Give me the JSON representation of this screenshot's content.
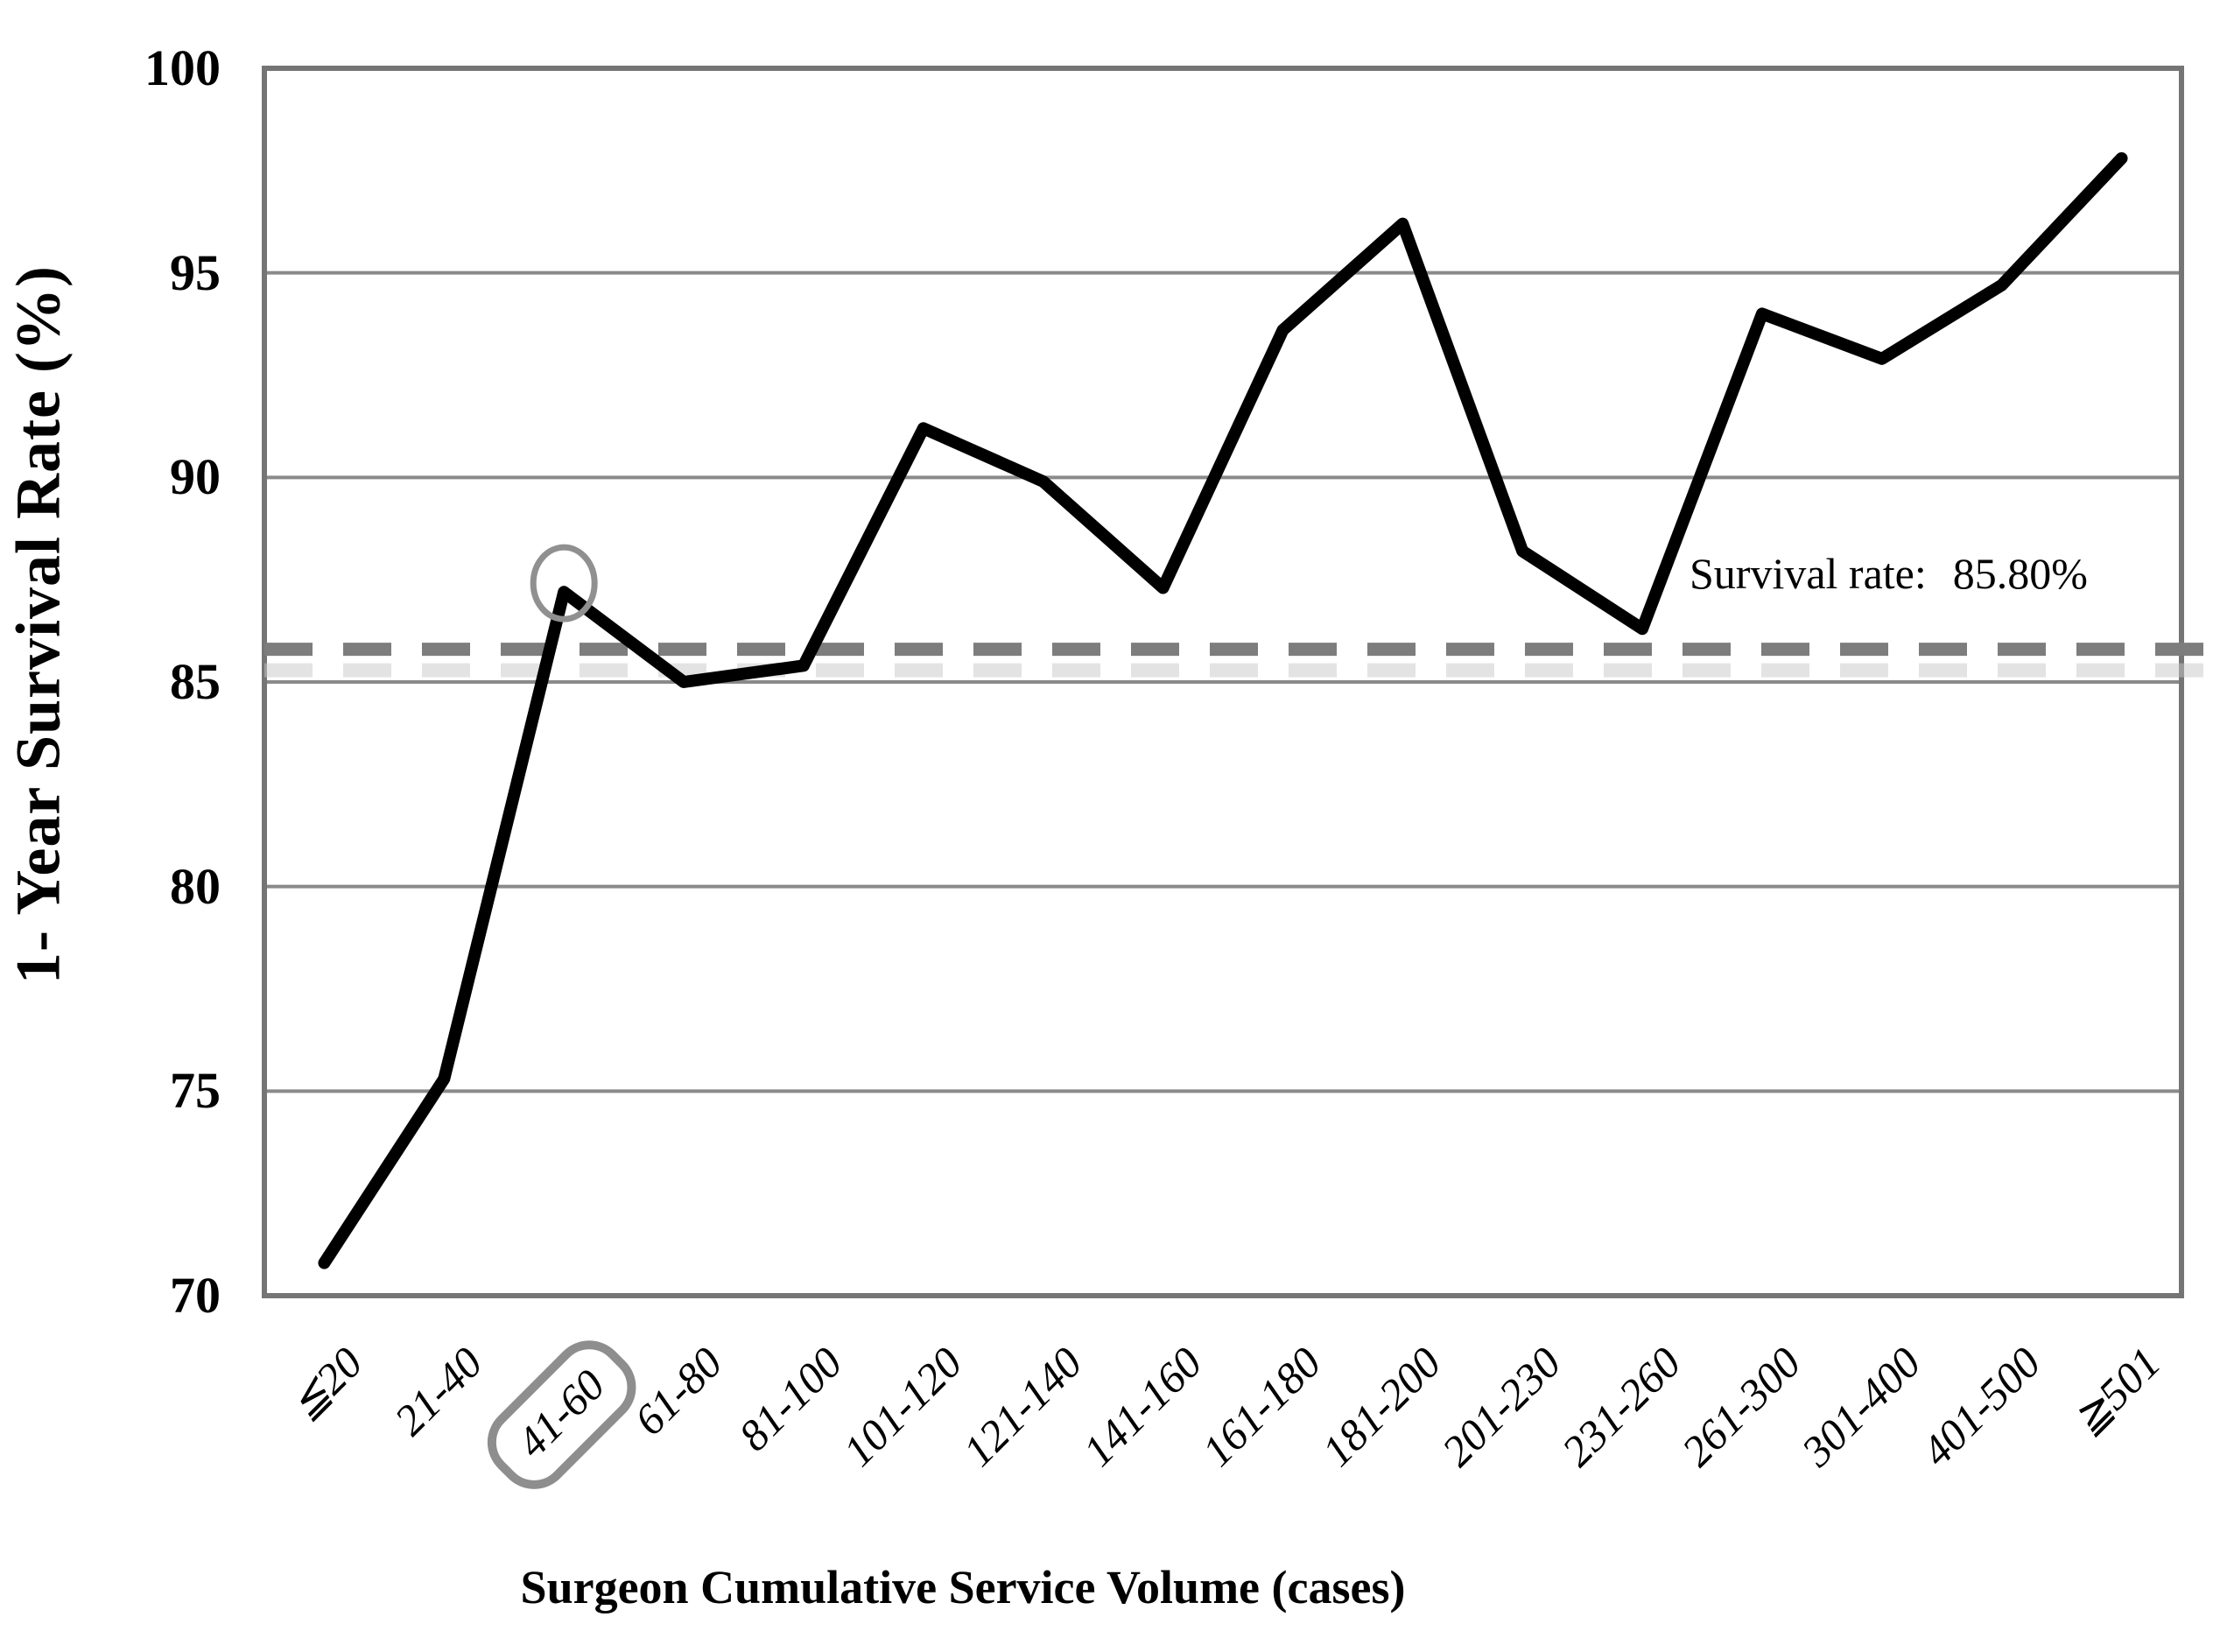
{
  "chart_data": {
    "type": "line",
    "title": "",
    "xlabel": "Surgeon Cumulative Service Volume (cases)",
    "ylabel": "1- Year Survival Rate (%)",
    "categories": [
      "≦20",
      "21-40",
      "41-60",
      "61-80",
      "81-100",
      "101-120",
      "121-140",
      "141-160",
      "161-180",
      "181-200",
      "201-230",
      "231-260",
      "261-300",
      "301-400",
      "401-500",
      "≧501"
    ],
    "series": [
      {
        "name": "1-year survival rate",
        "values": [
          70.8,
          75.3,
          87.2,
          85.0,
          85.4,
          91.2,
          89.9,
          87.3,
          93.6,
          96.2,
          88.2,
          86.3,
          94.0,
          92.9,
          94.7,
          97.8
        ]
      }
    ],
    "ylim": [
      70,
      100
    ],
    "yticks": [
      70,
      75,
      80,
      85,
      90,
      95,
      100
    ],
    "grid": "horizontal",
    "legend": "none",
    "reference_line": {
      "value": 85.8,
      "style": "dashed",
      "label": "Survival rate:",
      "value_label": "85.80%"
    },
    "annotations": {
      "circled_point_index": 2,
      "boxed_category_index": 2
    }
  },
  "colors": {
    "background": "#ffffff",
    "line": "#000000",
    "grid": "#8a8a8a",
    "axis_border": "#757575",
    "dashed_reference": "#7d7d7d",
    "dashed_reflection": "#c8c8c8",
    "annotation_circle": "#909090",
    "category_box": "#8e8e8e",
    "text": "#000000"
  }
}
